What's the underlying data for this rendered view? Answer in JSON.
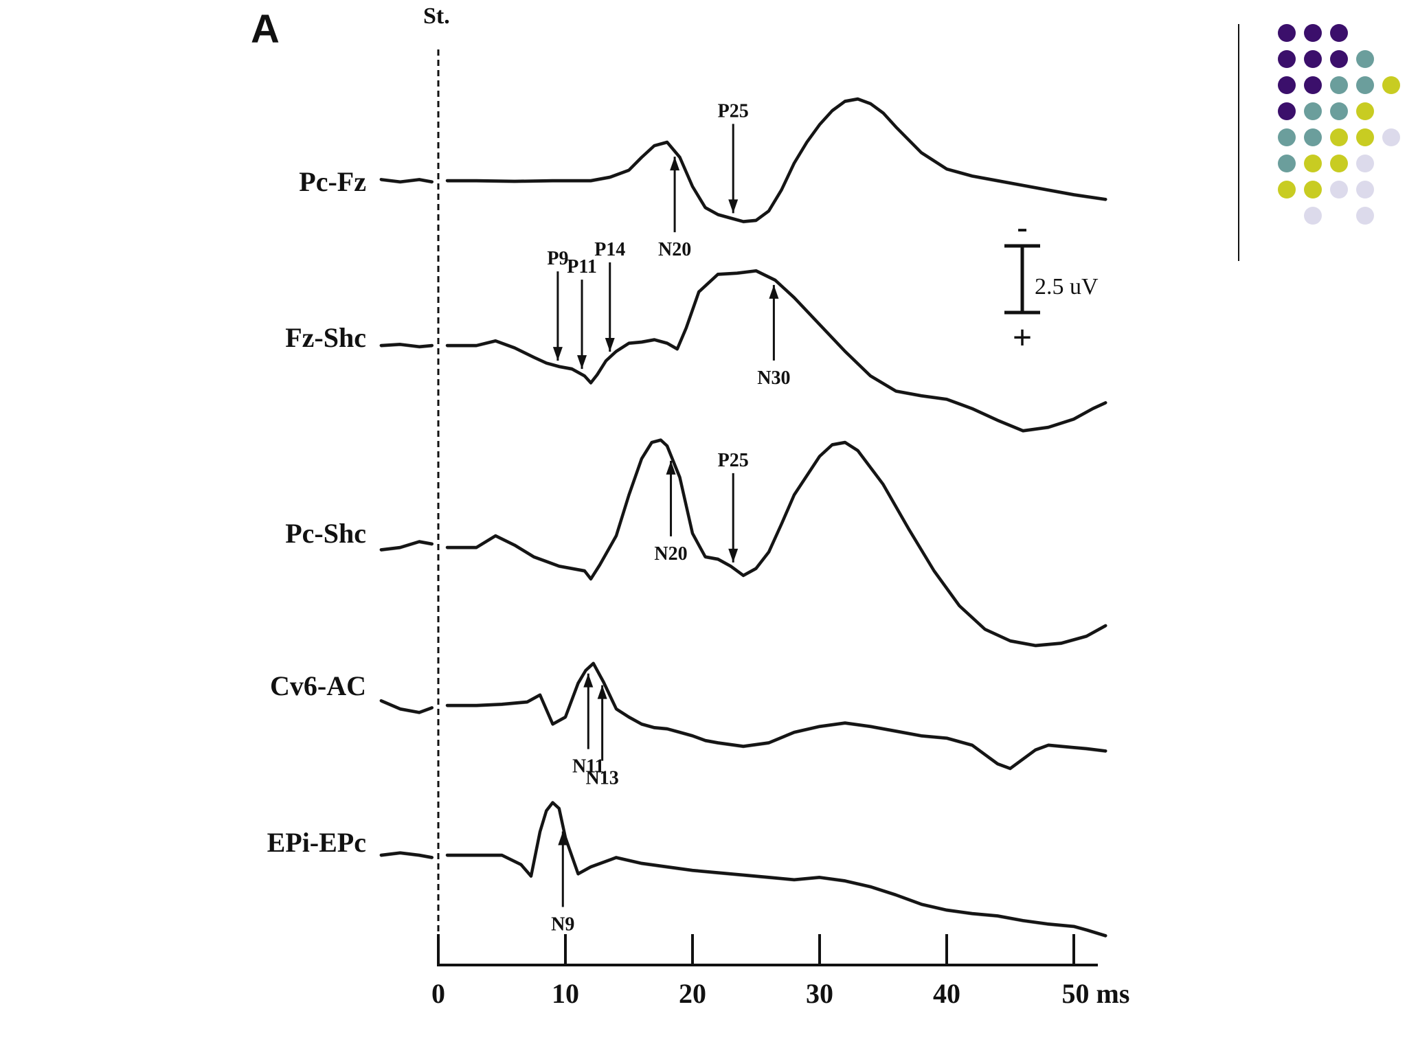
{
  "panel_label": "A",
  "stimulus_label": "St.",
  "chart_data": {
    "type": "line",
    "xlabel": "",
    "ylabel": "",
    "x_unit": "ms",
    "xlim": [
      -5,
      53
    ],
    "x_ticks": [
      0,
      10,
      20,
      30,
      40,
      50
    ],
    "x_tick_labels": [
      "0",
      "10",
      "20",
      "30",
      "40",
      "50 ms"
    ],
    "scale_bar": {
      "label": "2.5 uV",
      "top_sign": "-",
      "bottom_sign": "+"
    },
    "polarity": "negative up",
    "series": [
      {
        "name": "Pc-Fz",
        "x": [
          -4.5,
          -3,
          -1.5,
          -0.5,
          0.7,
          3,
          6,
          9,
          12,
          13.5,
          15,
          16,
          17,
          18,
          19,
          20,
          21,
          22,
          23,
          24,
          25,
          26,
          27,
          28,
          29,
          30,
          31,
          32,
          33,
          34,
          35,
          36,
          38,
          40,
          42,
          44,
          46,
          48,
          50,
          52.5
        ],
        "y": [
          0.1,
          -0.1,
          0.1,
          -0.1,
          0.0,
          0.0,
          -0.05,
          0.0,
          0.0,
          0.3,
          0.9,
          2.0,
          3.0,
          3.3,
          2.0,
          -0.5,
          -2.3,
          -2.9,
          -3.2,
          -3.5,
          -3.4,
          -2.6,
          -0.8,
          1.5,
          3.3,
          4.8,
          6.0,
          6.8,
          7.0,
          6.6,
          5.8,
          4.6,
          2.4,
          1.0,
          0.4,
          0.0,
          -0.4,
          -0.8,
          -1.2,
          -1.6
        ]
      },
      {
        "name": "Fz-Shc",
        "x": [
          -4.5,
          -3,
          -1.5,
          -0.5,
          0.7,
          3,
          4.5,
          6,
          7.5,
          8.5,
          9.5,
          10.5,
          11.5,
          12,
          12.5,
          13.2,
          14,
          15,
          16,
          17,
          18,
          18.8,
          19.5,
          20.5,
          22,
          23.5,
          25,
          26.5,
          28,
          30,
          32,
          34,
          36,
          38,
          40,
          42,
          44,
          46,
          48,
          50,
          51.5,
          52.5
        ],
        "y": [
          0.0,
          0.1,
          -0.1,
          0.0,
          0.0,
          0.0,
          0.4,
          -0.2,
          -1.0,
          -1.5,
          -1.8,
          -2.0,
          -2.6,
          -3.2,
          -2.5,
          -1.3,
          -0.5,
          0.2,
          0.3,
          0.5,
          0.2,
          -0.3,
          1.5,
          4.6,
          6.1,
          6.2,
          6.4,
          5.6,
          4.1,
          1.8,
          -0.5,
          -2.6,
          -3.9,
          -4.3,
          -4.6,
          -5.4,
          -6.4,
          -7.3,
          -7.0,
          -6.3,
          -5.4,
          -4.9
        ]
      },
      {
        "name": "Pc-Shc",
        "x": [
          -4.5,
          -3,
          -1.5,
          -0.5,
          0.7,
          3,
          4.5,
          6,
          7.5,
          8.5,
          9.5,
          10.5,
          11.5,
          12,
          12.7,
          14,
          15,
          16,
          16.8,
          17.5,
          18,
          19,
          20,
          21,
          22,
          23,
          24,
          25,
          26,
          27,
          28,
          30,
          31,
          32,
          33,
          35,
          37,
          39,
          41,
          43,
          45,
          47,
          49,
          51,
          52.5
        ],
        "y": [
          -0.2,
          0.0,
          0.5,
          0.3,
          0.0,
          0.0,
          1.0,
          0.2,
          -0.8,
          -1.2,
          -1.6,
          -1.8,
          -2.0,
          -2.7,
          -1.5,
          1.0,
          4.5,
          7.6,
          9.0,
          9.2,
          8.7,
          6.0,
          1.2,
          -0.8,
          -1.0,
          -1.6,
          -2.4,
          -1.8,
          -0.4,
          2.0,
          4.5,
          7.8,
          8.8,
          9.0,
          8.3,
          5.4,
          1.6,
          -2.0,
          -5.0,
          -7.0,
          -8.0,
          -8.4,
          -8.2,
          -7.6,
          -6.7
        ]
      },
      {
        "name": "Cv6-AC",
        "x": [
          -4.5,
          -3,
          -1.5,
          -0.5,
          0.7,
          3,
          5,
          7,
          8,
          9,
          10,
          11,
          11.6,
          12.2,
          13,
          14,
          15,
          16,
          17,
          18,
          19,
          20,
          21,
          22,
          24,
          26,
          28,
          30,
          32,
          34,
          36,
          38,
          40,
          42,
          43,
          44,
          45,
          46,
          47,
          48,
          49,
          50,
          51,
          52.5
        ],
        "y": [
          0.4,
          -0.3,
          -0.6,
          -0.2,
          0.0,
          0.0,
          0.1,
          0.3,
          0.9,
          -1.6,
          -1.0,
          1.9,
          3.0,
          3.6,
          2.0,
          -0.3,
          -1.0,
          -1.6,
          -1.9,
          -2.0,
          -2.3,
          -2.6,
          -3.0,
          -3.2,
          -3.5,
          -3.2,
          -2.3,
          -1.8,
          -1.5,
          -1.8,
          -2.2,
          -2.6,
          -2.8,
          -3.4,
          -4.2,
          -5.0,
          -5.4,
          -4.6,
          -3.8,
          -3.4,
          -3.5,
          -3.6,
          -3.7,
          -3.9
        ]
      },
      {
        "name": "EPi-EPc",
        "x": [
          -4.5,
          -3,
          -1.5,
          -0.5,
          0.7,
          3,
          5,
          6.5,
          7.3,
          8,
          8.5,
          9,
          9.5,
          10,
          11,
          12,
          14,
          16,
          18,
          20,
          22,
          24,
          26,
          28,
          30,
          32,
          34,
          36,
          38,
          40,
          42,
          44,
          46,
          48,
          50,
          51,
          52.5
        ],
        "y": [
          0.0,
          0.2,
          0.0,
          -0.2,
          0.0,
          0.0,
          0.0,
          -0.8,
          -1.8,
          2.0,
          3.8,
          4.5,
          4.0,
          1.5,
          -1.6,
          -1.0,
          -0.2,
          -0.7,
          -1.0,
          -1.3,
          -1.5,
          -1.7,
          -1.9,
          -2.1,
          -1.9,
          -2.2,
          -2.7,
          -3.4,
          -4.2,
          -4.7,
          -5.0,
          -5.2,
          -5.6,
          -5.9,
          -6.1,
          -6.4,
          -6.9
        ]
      }
    ],
    "annotations": [
      {
        "trace": "Pc-Fz",
        "text": "P25",
        "x": 23.2,
        "direction": "down"
      },
      {
        "trace": "Pc-Fz",
        "text": "N20",
        "x": 18.6,
        "direction": "up"
      },
      {
        "trace": "Fz-Shc",
        "text": "P9",
        "x": 9.4,
        "direction": "down"
      },
      {
        "trace": "Fz-Shc",
        "text": "P11",
        "x": 11.3,
        "direction": "down"
      },
      {
        "trace": "Fz-Shc",
        "text": "P14",
        "x": 13.5,
        "direction": "down"
      },
      {
        "trace": "Fz-Shc",
        "text": "N30",
        "x": 26.4,
        "direction": "up"
      },
      {
        "trace": "Pc-Shc",
        "text": "P25",
        "x": 23.2,
        "direction": "down"
      },
      {
        "trace": "Pc-Shc",
        "text": "N20",
        "x": 18.3,
        "direction": "up"
      },
      {
        "trace": "Cv6-AC",
        "text": "N11",
        "x": 11.8,
        "direction": "up"
      },
      {
        "trace": "Cv6-AC",
        "text": "N13",
        "x": 12.9,
        "direction": "up"
      },
      {
        "trace": "EPi-EPc",
        "text": "N9",
        "x": 9.8,
        "direction": "up"
      }
    ]
  },
  "decoration": {
    "dot_grid_colors": [
      "#3b0f6b",
      "#6b9e9c",
      "#c8cc22",
      "#dcdaeb"
    ]
  }
}
